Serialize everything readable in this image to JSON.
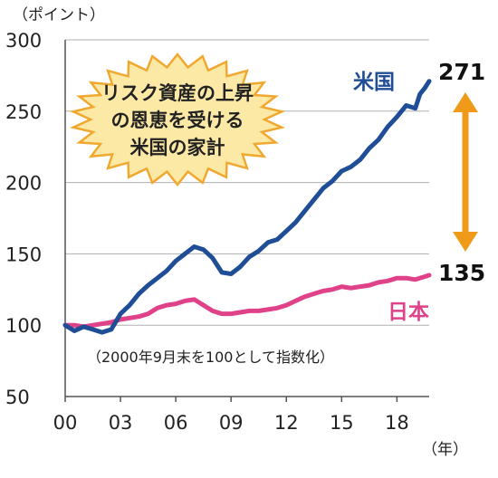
{
  "chart_data": {
    "type": "line",
    "y_unit": "（ポイント）",
    "x_unit": "（年）",
    "ylim": [
      50,
      300
    ],
    "y_ticks": [
      "300",
      "250",
      "200",
      "150",
      "100",
      "50"
    ],
    "y_tick_values": [
      300,
      250,
      200,
      150,
      100,
      50
    ],
    "xlim": [
      2000,
      2019.75
    ],
    "x_ticks": [
      "00",
      "03",
      "06",
      "09",
      "12",
      "15",
      "18"
    ],
    "x_tick_values": [
      2000,
      2003,
      2006,
      2009,
      2012,
      2015,
      2018
    ],
    "grid": "horizontal",
    "note": "（2000年9月末を100として指数化）",
    "annotation": [
      "リスク資産の上昇",
      "の恩恵を受ける",
      "米国の家計"
    ],
    "end_values": {
      "us": "271",
      "jp": "135"
    },
    "colors": {
      "us": "#1f4e96",
      "jp": "#e0428a",
      "arrow": "#f09a1a",
      "burst_fill": "#fde9a6",
      "burst_stroke": "#f0a830",
      "grid": "#b0b0b0"
    },
    "series": [
      {
        "name": "米国",
        "color": "#1f4e96",
        "x": [
          2000,
          2000.5,
          2001,
          2001.5,
          2002,
          2002.5,
          2003,
          2003.5,
          2004,
          2004.5,
          2005,
          2005.5,
          2006,
          2006.5,
          2007,
          2007.5,
          2008,
          2008.5,
          2009,
          2009.5,
          2010,
          2010.5,
          2011,
          2011.5,
          2012,
          2012.5,
          2013,
          2013.5,
          2014,
          2014.5,
          2015,
          2015.5,
          2016,
          2016.5,
          2017,
          2017.5,
          2018,
          2018.5,
          2019,
          2019.25,
          2019.5,
          2019.75
        ],
        "y": [
          100,
          96,
          99,
          97,
          95,
          97,
          108,
          114,
          122,
          128,
          133,
          138,
          145,
          150,
          155,
          153,
          147,
          137,
          136,
          141,
          148,
          152,
          158,
          160,
          166,
          172,
          180,
          188,
          196,
          201,
          208,
          211,
          216,
          224,
          230,
          239,
          246,
          254,
          252,
          262,
          266,
          271
        ]
      },
      {
        "name": "日本",
        "color": "#e0428a",
        "x": [
          2000,
          2000.5,
          2001,
          2001.5,
          2002,
          2002.5,
          2003,
          2003.5,
          2004,
          2004.5,
          2005,
          2005.5,
          2006,
          2006.5,
          2007,
          2007.5,
          2008,
          2008.5,
          2009,
          2009.5,
          2010,
          2010.5,
          2011,
          2011.5,
          2012,
          2012.5,
          2013,
          2013.5,
          2014,
          2014.5,
          2015,
          2015.5,
          2016,
          2016.5,
          2017,
          2017.5,
          2018,
          2018.5,
          2019,
          2019.5,
          2019.75
        ],
        "y": [
          100,
          100,
          99,
          100,
          101,
          102,
          104,
          105,
          106,
          108,
          112,
          114,
          115,
          117,
          118,
          114,
          110,
          108,
          108,
          109,
          110,
          110,
          111,
          112,
          114,
          117,
          120,
          122,
          124,
          125,
          127,
          126,
          127,
          128,
          130,
          131,
          133,
          133,
          132,
          134,
          135
        ]
      }
    ]
  }
}
